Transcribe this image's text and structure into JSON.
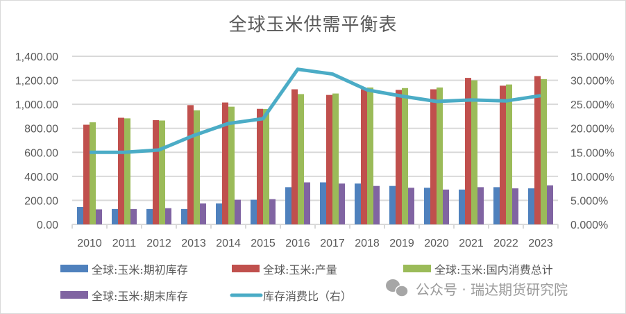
{
  "chart_data": {
    "type": "bar",
    "title": "全球玉米供需平衡表",
    "xlabel": "",
    "ylabel": "",
    "ylabel_right": "",
    "categories": [
      "2010",
      "2011",
      "2012",
      "2013",
      "2014",
      "2015",
      "2016",
      "2017",
      "2018",
      "2019",
      "2020",
      "2021",
      "2022",
      "2023"
    ],
    "ylim": [
      0,
      1400
    ],
    "ylim_right": [
      0,
      0.35
    ],
    "y_ticks": [
      "0.00",
      "200.00",
      "400.00",
      "600.00",
      "800.00",
      "1,000.00",
      "1,200.00",
      "1,400.00"
    ],
    "y_right_ticks": [
      "0.000%",
      "5.000%",
      "10.000%",
      "15.000%",
      "20.000%",
      "25.000%",
      "30.000%",
      "35.000%"
    ],
    "grid": true,
    "legend_position": "bottom",
    "series": [
      {
        "name": "全球:玉米:期初库存",
        "type": "bar",
        "axis": "left",
        "color": "#4f81bd",
        "values": [
          145,
          128,
          128,
          128,
          175,
          205,
          310,
          350,
          340,
          320,
          305,
          290,
          310,
          300
        ]
      },
      {
        "name": "全球:玉米:产量",
        "type": "bar",
        "axis": "left",
        "color": "#c0504d",
        "values": [
          830,
          888,
          868,
          993,
          1015,
          962,
          1125,
          1078,
          1125,
          1120,
          1125,
          1220,
          1155,
          1235
        ]
      },
      {
        "name": "全球:玉米:国内消费总计",
        "type": "bar",
        "axis": "left",
        "color": "#9bbb59",
        "values": [
          850,
          883,
          865,
          950,
          980,
          960,
          1085,
          1090,
          1140,
          1135,
          1140,
          1200,
          1165,
          1210
        ]
      },
      {
        "name": "全球:玉米:期末库存",
        "type": "bar",
        "axis": "left",
        "color": "#8064a2",
        "values": [
          125,
          128,
          135,
          175,
          205,
          210,
          350,
          340,
          320,
          305,
          290,
          310,
          300,
          325
        ]
      },
      {
        "name": "库存消费比（右）",
        "type": "line",
        "axis": "right",
        "color": "#4bacc6",
        "values": [
          0.15,
          0.15,
          0.155,
          0.185,
          0.21,
          0.22,
          0.323,
          0.313,
          0.28,
          0.267,
          0.256,
          0.259,
          0.257,
          0.268
        ]
      }
    ]
  },
  "watermark": {
    "icon": "wechat-icon",
    "text": "公众号 · 瑞达期货研究院"
  }
}
